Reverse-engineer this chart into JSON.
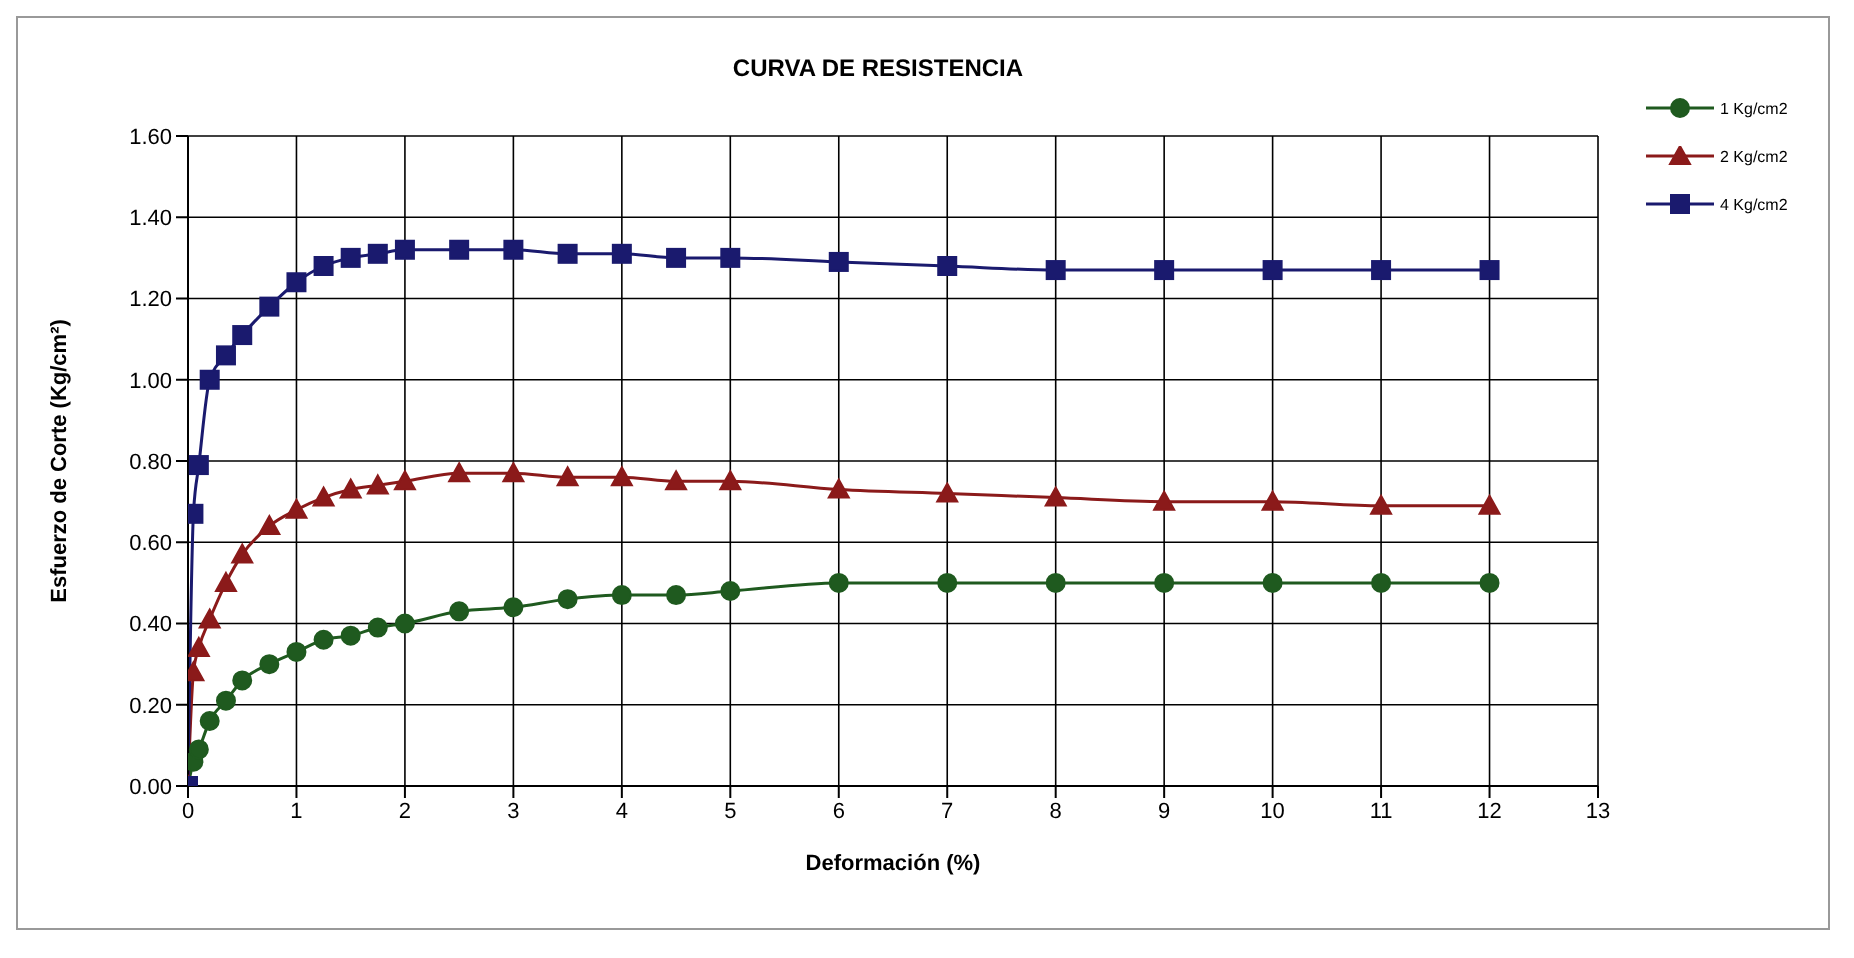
{
  "chart_data": {
    "type": "line",
    "title": "CURVA DE RESISTENCIA",
    "xlabel": "Deformación (%)",
    "ylabel": "Esfuerzo de Corte (Kg/cm²)",
    "x": [
      0,
      0.05,
      0.1,
      0.2,
      0.35,
      0.5,
      0.75,
      1,
      1.25,
      1.5,
      1.75,
      2,
      2.5,
      3,
      3.5,
      4,
      4.5,
      5,
      6,
      7,
      8,
      9,
      10,
      11,
      12
    ],
    "series": [
      {
        "name": "1 Kg/cm2",
        "color": "#1f5a1f",
        "marker": "circle",
        "values": [
          0,
          0.06,
          0.09,
          0.16,
          0.21,
          0.26,
          0.3,
          0.33,
          0.36,
          0.37,
          0.39,
          0.4,
          0.43,
          0.44,
          0.46,
          0.47,
          0.47,
          0.48,
          0.5,
          0.5,
          0.5,
          0.5,
          0.5,
          0.5,
          0.5
        ]
      },
      {
        "name": "2 Kg/cm2",
        "color": "#8b1a1a",
        "marker": "triangle",
        "values": [
          0,
          0.28,
          0.34,
          0.41,
          0.5,
          0.57,
          0.64,
          0.68,
          0.71,
          0.73,
          0.74,
          0.75,
          0.77,
          0.77,
          0.76,
          0.76,
          0.75,
          0.75,
          0.73,
          0.72,
          0.71,
          0.7,
          0.7,
          0.69,
          0.69
        ]
      },
      {
        "name": "4 Kg/cm2",
        "color": "#1a1a6e",
        "marker": "square",
        "values": [
          0,
          0.67,
          0.79,
          1.0,
          1.06,
          1.11,
          1.18,
          1.24,
          1.28,
          1.3,
          1.31,
          1.32,
          1.32,
          1.32,
          1.31,
          1.31,
          1.3,
          1.3,
          1.29,
          1.28,
          1.27,
          1.27,
          1.27,
          1.27,
          1.27
        ]
      }
    ],
    "xlim": [
      0,
      13
    ],
    "xticks": [
      0,
      1,
      2,
      3,
      4,
      5,
      6,
      7,
      8,
      9,
      10,
      11,
      12,
      13
    ],
    "ylim": [
      0,
      1.6
    ],
    "yticks": [
      {
        "value": 0,
        "label": "0.00"
      },
      {
        "value": 0.2,
        "label": "0.20"
      },
      {
        "value": 0.4,
        "label": "0.40"
      },
      {
        "value": 0.6,
        "label": "0.60"
      },
      {
        "value": 0.8,
        "label": "0.80"
      },
      {
        "value": 1,
        "label": "1.00"
      },
      {
        "value": 1.2,
        "label": "1.20"
      },
      {
        "value": 1.4,
        "label": "1.40"
      },
      {
        "value": 1.6,
        "label": "1.60"
      }
    ],
    "grid": true,
    "legend": "top right",
    "line_style": "solid"
  }
}
